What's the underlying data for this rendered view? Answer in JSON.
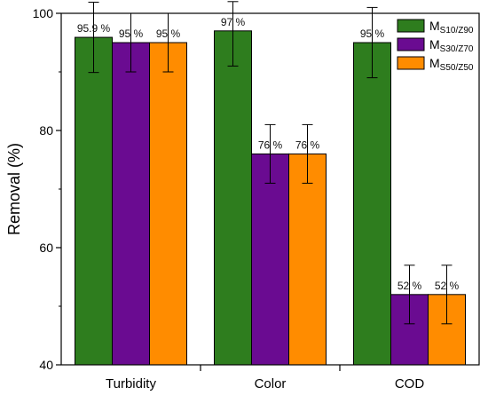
{
  "chart_data": {
    "type": "bar",
    "title": "",
    "xlabel": "",
    "ylabel": "Removal (%)",
    "ylim": [
      40,
      100
    ],
    "yticks": [
      40,
      60,
      80,
      100
    ],
    "grid": false,
    "legend_position": "top-right",
    "categories": [
      "Turbidity",
      "Color",
      "COD"
    ],
    "series": [
      {
        "name": "M",
        "name_sub": "S10/Z90",
        "color": "#2e7d1e",
        "values": [
          95.9,
          97,
          95
        ],
        "errors": [
          6,
          6,
          6
        ],
        "labels": [
          "95.9 %",
          "97 %",
          "95 %"
        ]
      },
      {
        "name": "M",
        "name_sub": "S30/Z70",
        "color": "#6a0b91",
        "values": [
          95,
          76,
          52
        ],
        "errors": [
          5,
          5,
          5
        ],
        "labels": [
          "95 %",
          "76 %",
          "52 %"
        ]
      },
      {
        "name": "M",
        "name_sub": "S50/Z50",
        "color": "#ff8c00",
        "values": [
          95,
          76,
          52
        ],
        "errors": [
          5,
          5,
          5
        ],
        "labels": [
          "95 %",
          "76 %",
          "52 %"
        ]
      }
    ]
  }
}
